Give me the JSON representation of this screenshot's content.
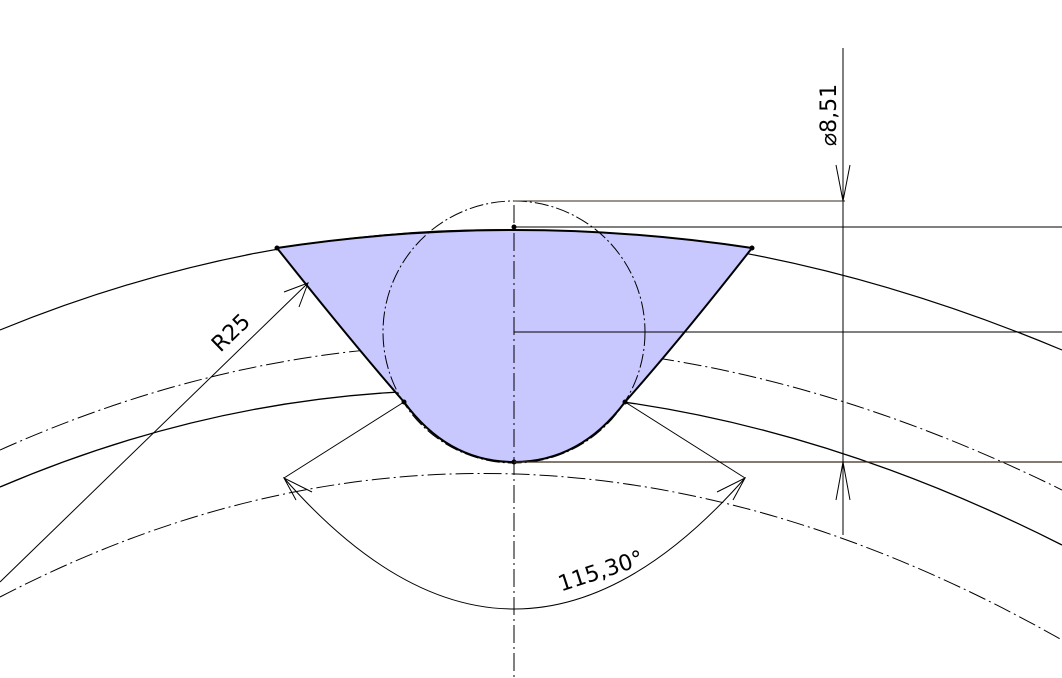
{
  "drawing": {
    "annotations": {
      "radius_label": "R25",
      "angle_label": "115,30°",
      "diameter_symbol": "⌀",
      "diameter_value": "8,51"
    },
    "colors": {
      "line": "#000000",
      "dimension_line": "#3a2a1a",
      "profile_fill": "#c8c8ff",
      "background": "#ffffff"
    }
  }
}
